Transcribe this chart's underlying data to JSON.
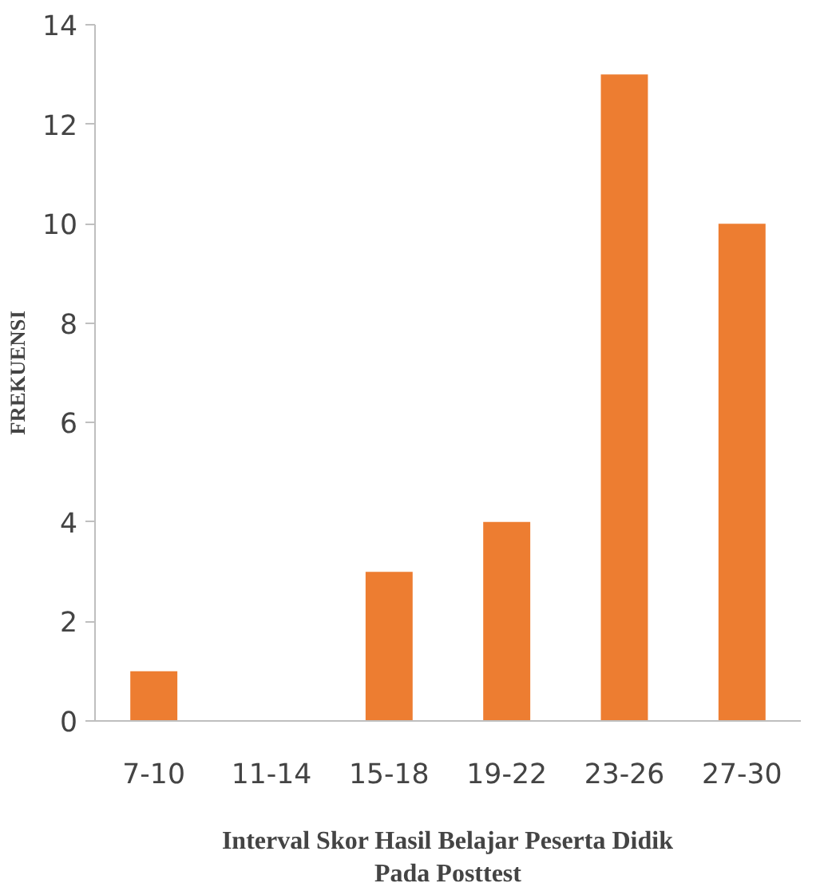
{
  "chart_data": {
    "type": "bar",
    "xlabel": "Interval Skor Hasil Belajar Peserta Didik Pada Posttest",
    "ylabel": "FREKUENSI",
    "categories": [
      "7-10",
      "11-14",
      "15-18",
      "19-22",
      "23-26",
      "27-30"
    ],
    "values": [
      1,
      0,
      3,
      4,
      13,
      10
    ],
    "color": "#ed7d31",
    "ylim": [
      0,
      14
    ],
    "yticks": [
      0,
      2,
      4,
      6,
      8,
      10,
      12,
      14
    ],
    "grid": false
  }
}
